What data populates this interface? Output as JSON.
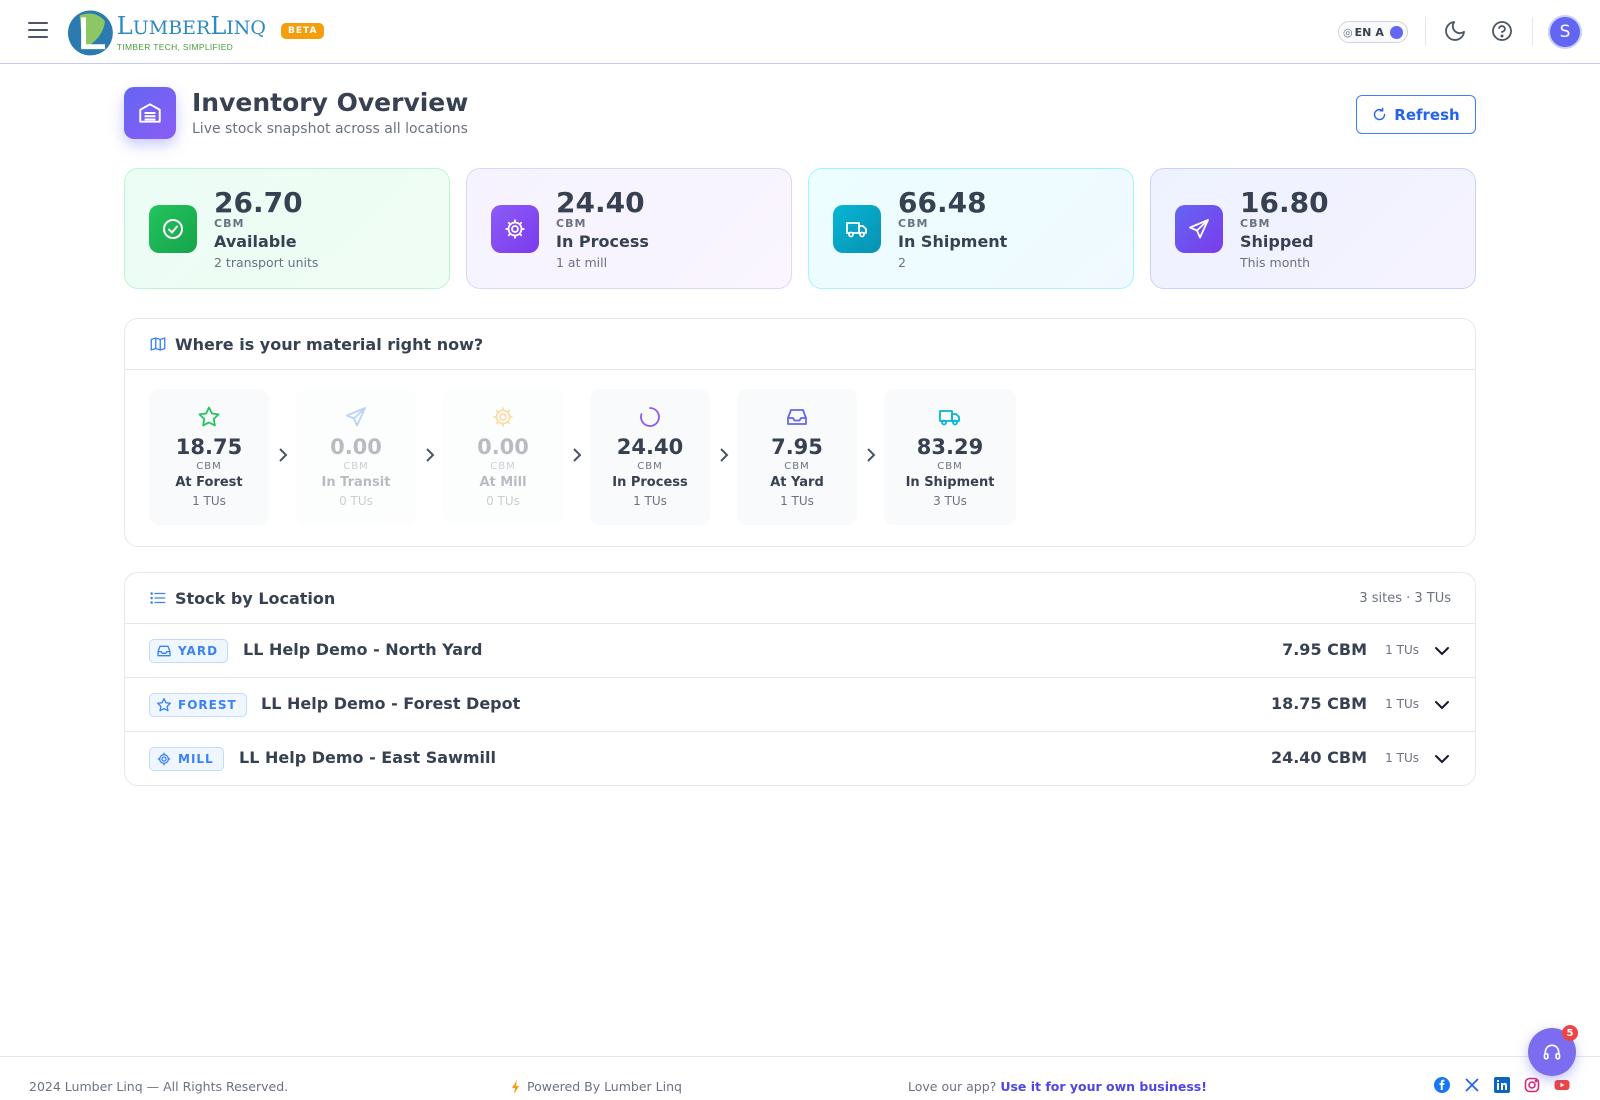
{
  "header": {
    "logo_name_big": "L",
    "logo_name_rest": "UMBER",
    "logo_name_big2": "L",
    "logo_name_rest2": "INQ",
    "logo_tagline": "TIMBER TECH, SIMPLIFIED",
    "beta_label": "BETA",
    "lang_label": "EN",
    "lang_alt": "A",
    "avatar_initial": "S"
  },
  "page": {
    "title": "Inventory Overview",
    "subtitle": "Live stock snapshot across all locations",
    "refresh_label": "Refresh"
  },
  "stat_cards": [
    {
      "value": "26.70",
      "unit": "CBM",
      "label": "Available",
      "sub": "2 transport units",
      "icon": "check-circle-icon",
      "color": "#16a34a"
    },
    {
      "value": "24.40",
      "unit": "CBM",
      "label": "In Process",
      "sub": "1 at mill",
      "icon": "gear-icon",
      "color": "#8b5cf6"
    },
    {
      "value": "66.48",
      "unit": "CBM",
      "label": "In Shipment",
      "sub": "2",
      "icon": "truck-icon",
      "color": "#0891b2"
    },
    {
      "value": "16.80",
      "unit": "CBM",
      "label": "Shipped",
      "sub": "This month",
      "icon": "send-icon",
      "color": "#6366f1"
    }
  ],
  "material_flow": {
    "title": "Where is your material right now?",
    "steps": [
      {
        "value": "18.75",
        "unit": "CBM",
        "label": "At Forest",
        "sub": "1 TUs",
        "icon": "star-icon",
        "color": "#22c55e"
      },
      {
        "value": "0.00",
        "unit": "CBM",
        "label": "In Transit",
        "sub": "0 TUs",
        "icon": "send-icon",
        "color": "#3b82f6"
      },
      {
        "value": "0.00",
        "unit": "CBM",
        "label": "At Mill",
        "sub": "0 TUs",
        "icon": "gear-icon",
        "color": "#f59e0b"
      },
      {
        "value": "24.40",
        "unit": "CBM",
        "label": "In Process",
        "sub": "1 TUs",
        "icon": "loader-icon",
        "color": "#8b5cf6"
      },
      {
        "value": "7.95",
        "unit": "CBM",
        "label": "At Yard",
        "sub": "1 TUs",
        "icon": "inbox-icon",
        "color": "#6366f1"
      },
      {
        "value": "83.29",
        "unit": "CBM",
        "label": "In Shipment",
        "sub": "3 TUs",
        "icon": "truck-icon",
        "color": "#06b6d4"
      }
    ]
  },
  "stock_by_location": {
    "title": "Stock by Location",
    "summary": "3 sites · 3 TUs",
    "rows": [
      {
        "badge": "YARD",
        "badge_icon": "inbox-icon",
        "name": "LL Help Demo - North Yard",
        "qty": "7.95 CBM",
        "tus": "1 TUs"
      },
      {
        "badge": "FOREST",
        "badge_icon": "star-icon",
        "name": "LL Help Demo - Forest Depot",
        "qty": "18.75 CBM",
        "tus": "1 TUs"
      },
      {
        "badge": "MILL",
        "badge_icon": "gear-icon",
        "name": "LL Help Demo - East Sawmill",
        "qty": "24.40 CBM",
        "tus": "1 TUs"
      }
    ]
  },
  "footer": {
    "copyright": "2024 Lumber Linq — All Rights Reserved.",
    "powered": "Powered By Lumber Linq",
    "love_text": "Love our app?",
    "love_link": "Use it for your own business!"
  },
  "support": {
    "badge_count": "5"
  },
  "colors": {
    "accent": "#6366f1",
    "link": "#2563eb"
  }
}
